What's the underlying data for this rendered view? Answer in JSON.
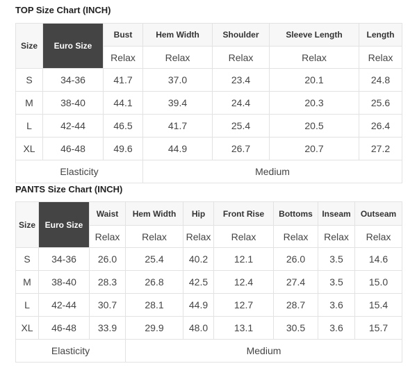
{
  "top": {
    "title": "TOP Size Chart (INCH)",
    "size_label": "Size",
    "euro_label": "Euro Size",
    "columns": [
      "Bust",
      "Hem Width",
      "Shoulder",
      "Sleeve Length",
      "Length"
    ],
    "sub_label": "Relax",
    "rows": [
      [
        "S",
        "34-36",
        "41.7",
        "37.0",
        "23.4",
        "20.1",
        "24.8"
      ],
      [
        "M",
        "38-40",
        "44.1",
        "39.4",
        "24.4",
        "20.3",
        "25.6"
      ],
      [
        "L",
        "42-44",
        "46.5",
        "41.7",
        "25.4",
        "20.5",
        "26.4"
      ],
      [
        "XL",
        "46-48",
        "49.6",
        "44.9",
        "26.7",
        "20.7",
        "27.2"
      ]
    ],
    "footer_label": "Elasticity",
    "footer_value": "Medium"
  },
  "pants": {
    "title": "PANTS Size Chart (INCH)",
    "size_label": "Size",
    "euro_label": "Euro Size",
    "columns": [
      "Waist",
      "Hem Width",
      "Hip",
      "Front Rise",
      "Bottoms",
      "Inseam",
      "Outseam"
    ],
    "sub_label": "Relax",
    "rows": [
      [
        "S",
        "34-36",
        "26.0",
        "25.4",
        "40.2",
        "12.1",
        "26.0",
        "3.5",
        "14.6"
      ],
      [
        "M",
        "38-40",
        "28.3",
        "26.8",
        "42.5",
        "12.4",
        "27.4",
        "3.5",
        "15.0"
      ],
      [
        "L",
        "42-44",
        "30.7",
        "28.1",
        "44.9",
        "12.7",
        "28.7",
        "3.6",
        "15.4"
      ],
      [
        "XL",
        "46-48",
        "33.9",
        "29.9",
        "48.0",
        "13.1",
        "30.5",
        "3.6",
        "15.7"
      ]
    ],
    "footer_label": "Elasticity",
    "footer_value": "Medium"
  },
  "colors": {
    "euro_header_bg": "#444444",
    "header_bg": "#f7f7f7",
    "border": "#e2e2e2"
  }
}
